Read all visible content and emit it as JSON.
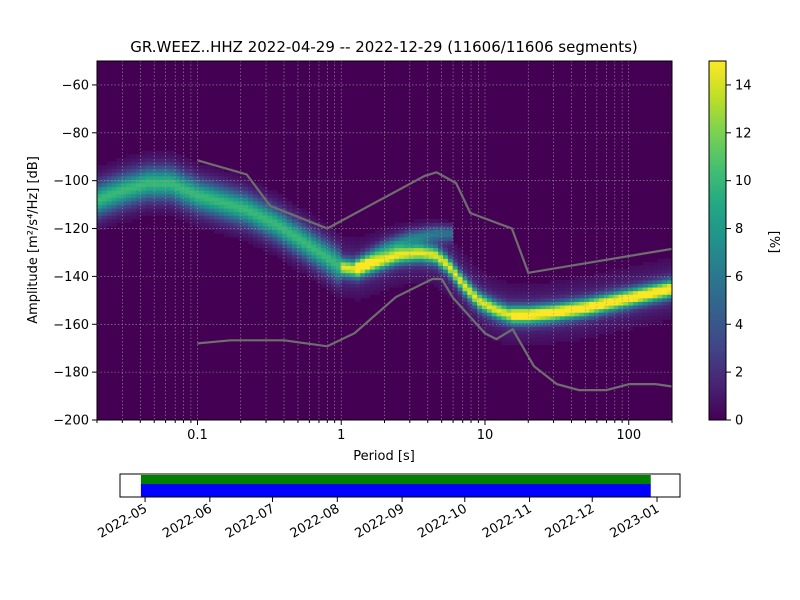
{
  "chart_data": [
    {
      "type": "heatmap",
      "title": "GR.WEEZ..HHZ   2022-04-29 -- 2022-12-29  (11606/11606 segments)",
      "xlabel": "Period [s]",
      "ylabel": "Amplitude [m²/s⁴/Hz] [dB]",
      "xscale": "log",
      "xlim": [
        0.02,
        200
      ],
      "ylim": [
        -200,
        -50
      ],
      "xticks": [
        0.1,
        1,
        10,
        100
      ],
      "xtick_labels": [
        "0.1",
        "1",
        "10",
        "100"
      ],
      "yticks": [
        -200,
        -180,
        -160,
        -140,
        -120,
        -100,
        -80,
        -60
      ],
      "ytick_labels": [
        "−200",
        "−180",
        "−160",
        "−140",
        "−120",
        "−100",
        "−80",
        "−60"
      ],
      "grid": true,
      "colormap": "viridis",
      "colorbar": {
        "label": "[%]",
        "range": [
          0,
          15
        ],
        "ticks": [
          0,
          2,
          4,
          6,
          8,
          10,
          12,
          14
        ],
        "tick_labels": [
          "0",
          "2",
          "4",
          "6",
          "8",
          "10",
          "12",
          "14"
        ]
      },
      "mode_curve": {
        "period": [
          0.02,
          0.03,
          0.045,
          0.065,
          0.1,
          0.15,
          0.22,
          0.35,
          0.5,
          0.75,
          1.0,
          1.3,
          1.8,
          2.5,
          3.5,
          4.5,
          5.5,
          7,
          9,
          12,
          15,
          20,
          30,
          50,
          100,
          200
        ],
        "db": [
          -108,
          -104,
          -101,
          -101,
          -106,
          -109,
          -112,
          -118,
          -124,
          -131,
          -136,
          -137,
          -134,
          -131,
          -130,
          -131,
          -135,
          -143,
          -150,
          -154,
          -156,
          -156,
          -155,
          -153,
          -149,
          -145
        ]
      },
      "secondary_band": {
        "period": [
          1.3,
          2.0,
          3.0,
          4.5,
          6.0
        ],
        "db": [
          -135,
          -128,
          -124,
          -122,
          -122
        ]
      },
      "band_halfwidth_db": [
        6,
        4
      ],
      "nhnm": {
        "period": [
          0.1,
          0.22,
          0.32,
          0.8,
          3.8,
          4.6,
          6.3,
          7.9,
          15.4,
          20,
          354.8
        ],
        "db": [
          -91.5,
          -97.4,
          -110.5,
          -120,
          -98,
          -96.5,
          -101,
          -113.5,
          -120,
          -138.5,
          -126
        ]
      },
      "nlnm": {
        "period": [
          0.1,
          0.17,
          0.4,
          0.8,
          1.24,
          2.4,
          4.3,
          5.0,
          6.0,
          10.0,
          12.0,
          15.6,
          21.9,
          31.6,
          45,
          70,
          101,
          154,
          200
        ],
        "db": [
          -168,
          -166.7,
          -166.7,
          -169.2,
          -163.7,
          -148.6,
          -141.1,
          -141.1,
          -149,
          -163.8,
          -166.2,
          -162.1,
          -177.5,
          -185,
          -187.5,
          -187.5,
          -185,
          -185,
          -186
        ]
      }
    },
    {
      "type": "timeline",
      "xlim": [
        "2022-04-19",
        "2023-01-12"
      ],
      "coverage_start": "2022-04-29",
      "coverage_end": "2022-12-29",
      "bands": [
        "#008000",
        "#0000ff"
      ],
      "xticks": [
        "2022-05-01",
        "2022-06-01",
        "2022-07-01",
        "2022-08-01",
        "2022-09-01",
        "2022-10-01",
        "2022-11-01",
        "2022-12-01",
        "2023-01-01"
      ],
      "xtick_labels": [
        "2022-05",
        "2022-06",
        "2022-07",
        "2022-08",
        "2022-09",
        "2022-10",
        "2022-11",
        "2022-12",
        "2023-01"
      ]
    }
  ]
}
